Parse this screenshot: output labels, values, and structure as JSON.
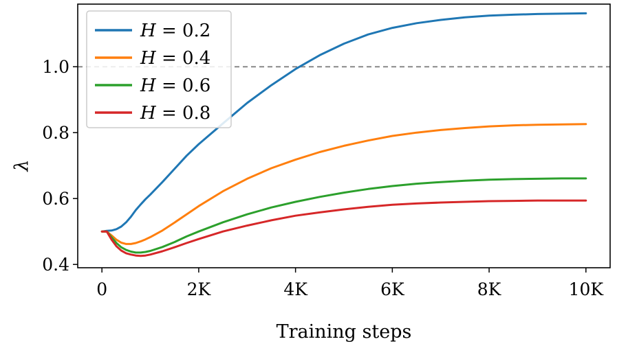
{
  "chart_data": {
    "type": "line",
    "title": "",
    "xlabel": "Training steps",
    "ylabel": "λ",
    "xlim": [
      -500,
      10500
    ],
    "ylim": [
      0.39,
      1.19
    ],
    "x_ticks": [
      0,
      2000,
      4000,
      6000,
      8000,
      10000
    ],
    "x_tick_labels": [
      "0",
      "2K",
      "4K",
      "6K",
      "8K",
      "10K"
    ],
    "y_ticks": [
      0.4,
      0.6,
      0.8,
      1.0
    ],
    "y_tick_labels": [
      "0.4",
      "0.6",
      "0.8",
      "1.0"
    ],
    "grid": false,
    "legend_position": "top-left",
    "reference_line": {
      "y": 1.0,
      "style": "dashed",
      "color": "#888888"
    },
    "x": [
      0,
      100,
      200,
      300,
      400,
      500,
      600,
      700,
      800,
      900,
      1000,
      1250,
      1500,
      1750,
      2000,
      2500,
      3000,
      3500,
      4000,
      4500,
      5000,
      5500,
      6000,
      6500,
      7000,
      7500,
      8000,
      8500,
      9000,
      9500,
      10000
    ],
    "series": [
      {
        "name": "H = 0.2",
        "label_prefix": "H",
        "label_suffix": " = 0.2",
        "color": "#1f77b4",
        "values": [
          0.5,
          0.502,
          0.503,
          0.507,
          0.515,
          0.528,
          0.545,
          0.565,
          0.582,
          0.598,
          0.612,
          0.65,
          0.69,
          0.73,
          0.765,
          0.828,
          0.89,
          0.944,
          0.993,
          1.035,
          1.07,
          1.098,
          1.118,
          1.132,
          1.142,
          1.15,
          1.155,
          1.158,
          1.16,
          1.161,
          1.162
        ]
      },
      {
        "name": "H = 0.4",
        "label_prefix": "H",
        "label_suffix": " = 0.4",
        "color": "#ff7f0e",
        "values": [
          0.5,
          0.5,
          0.488,
          0.475,
          0.466,
          0.462,
          0.462,
          0.465,
          0.47,
          0.476,
          0.483,
          0.503,
          0.527,
          0.552,
          0.577,
          0.622,
          0.66,
          0.692,
          0.718,
          0.741,
          0.76,
          0.776,
          0.79,
          0.8,
          0.808,
          0.814,
          0.819,
          0.822,
          0.824,
          0.825,
          0.826
        ]
      },
      {
        "name": "H = 0.6",
        "label_prefix": "H",
        "label_suffix": " = 0.6",
        "color": "#2ca02c",
        "values": [
          0.5,
          0.5,
          0.482,
          0.465,
          0.452,
          0.444,
          0.439,
          0.436,
          0.436,
          0.438,
          0.441,
          0.453,
          0.468,
          0.485,
          0.5,
          0.528,
          0.552,
          0.573,
          0.59,
          0.605,
          0.618,
          0.629,
          0.638,
          0.645,
          0.65,
          0.654,
          0.657,
          0.659,
          0.66,
          0.661,
          0.661
        ]
      },
      {
        "name": "H = 0.8",
        "label_prefix": "H",
        "label_suffix": " = 0.8",
        "color": "#d62728",
        "values": [
          0.5,
          0.5,
          0.475,
          0.455,
          0.442,
          0.434,
          0.43,
          0.427,
          0.426,
          0.427,
          0.43,
          0.44,
          0.452,
          0.465,
          0.477,
          0.5,
          0.518,
          0.534,
          0.548,
          0.558,
          0.567,
          0.575,
          0.581,
          0.585,
          0.588,
          0.59,
          0.592,
          0.593,
          0.594,
          0.594,
          0.594
        ]
      }
    ]
  }
}
